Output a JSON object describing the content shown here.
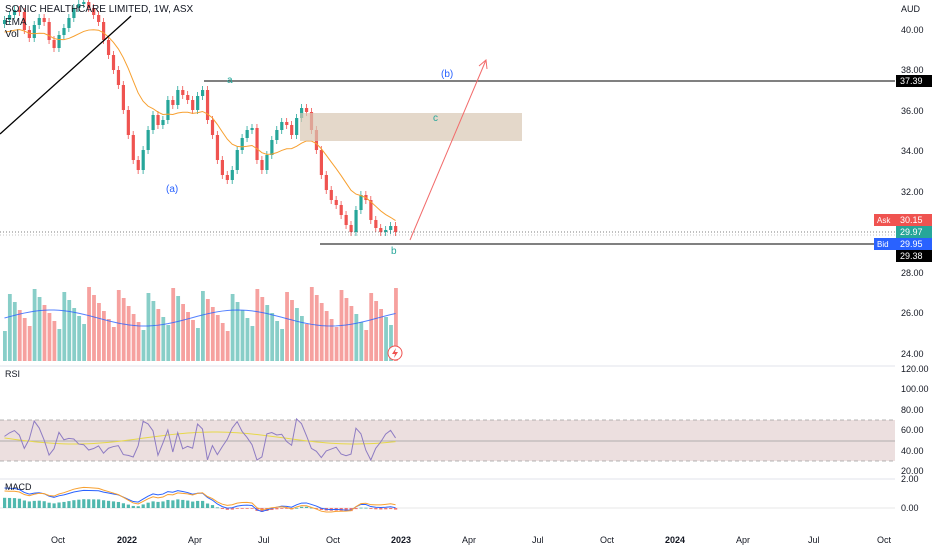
{
  "header": {
    "symbol_line": "SONIC HEALTHCARE LIMITED, 1W, ASX",
    "ema_label": "EMA",
    "vol_label": "Vol"
  },
  "price_axis": {
    "currency": "AUD",
    "ticks": [
      "40.00",
      "38.00",
      "36.00",
      "34.00",
      "32.00",
      "28.00",
      "26.00",
      "24.00"
    ]
  },
  "price_tags": {
    "level_high": "37.39",
    "ask_label": "Ask",
    "ask_value": "30.15",
    "last_value": "29.97",
    "bid_label": "Bid",
    "bid_value": "29.95",
    "level_low": "29.38"
  },
  "annotations": {
    "a_lower": "(a)",
    "a_upper": "a",
    "b_upper": "(b)",
    "c": "c",
    "b": "b"
  },
  "rsi": {
    "label": "RSI",
    "ticks": [
      "120.00",
      "100.00",
      "80.00",
      "60.00",
      "40.00",
      "20.00"
    ]
  },
  "macd": {
    "label": "MACD",
    "ticks": [
      "2.00",
      "0.00"
    ]
  },
  "time_axis": {
    "labels": [
      "Oct",
      "2022",
      "Apr",
      "Jul",
      "Oct",
      "2023",
      "Apr",
      "Jul",
      "Oct",
      "2024",
      "Apr",
      "Jul",
      "Oct"
    ]
  },
  "colors": {
    "up": "#26a69a",
    "down": "#ef5350",
    "ema": "#f7a030",
    "trend": "#000000",
    "projection": "#f26b6b",
    "wave_label": "#2962ff",
    "zone": "#d9c7b3"
  }
}
